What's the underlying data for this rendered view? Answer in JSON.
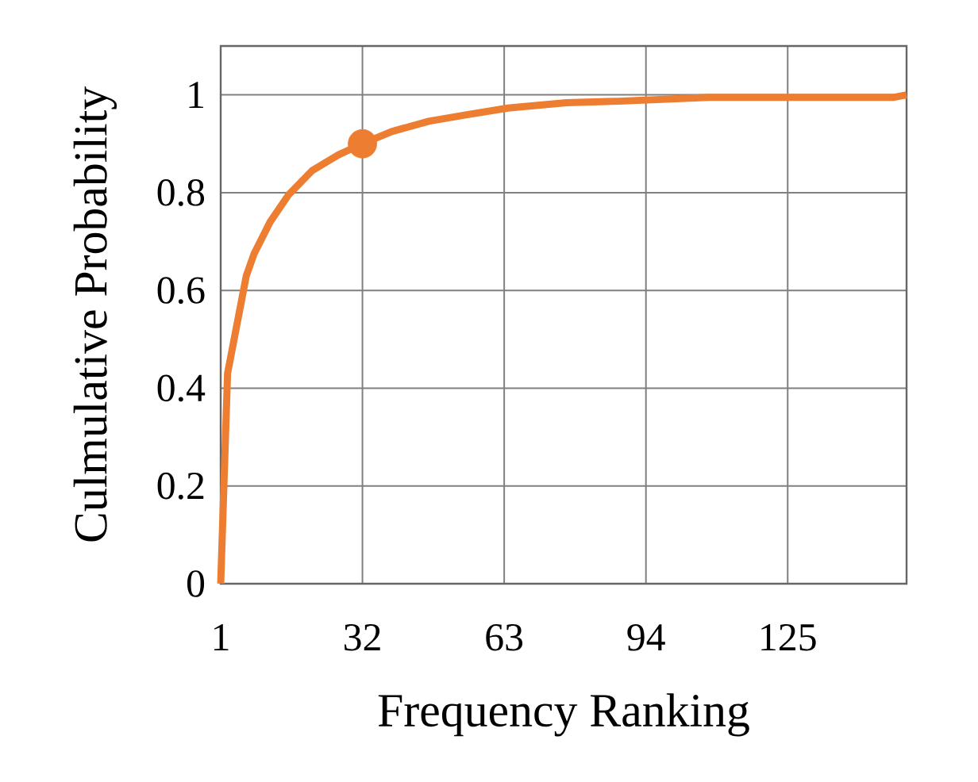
{
  "chart_data": {
    "type": "line",
    "xlabel": "Frequency Ranking",
    "ylabel": "Culmulative Probability",
    "xlim": [
      1,
      151
    ],
    "ylim": [
      0,
      1.1
    ],
    "xticks": [
      1,
      32,
      63,
      94,
      125
    ],
    "yticks": [
      0,
      0.2,
      0.4,
      0.6,
      0.8,
      1
    ],
    "grid": true,
    "series": [
      {
        "color": "#ed7d31",
        "marker": "none",
        "x": [
          1,
          2.5,
          6.6,
          8.3,
          11.8,
          15.8,
          21,
          26.7,
          32,
          38.4,
          46.5,
          54.6,
          63.8,
          68.5,
          76.6,
          88,
          107.8,
          148.3,
          151
        ],
        "values": [
          0,
          0.43,
          0.63,
          0.675,
          0.74,
          0.795,
          0.845,
          0.877,
          0.9,
          0.925,
          0.946,
          0.959,
          0.973,
          0.977,
          0.984,
          0.987,
          0.995,
          0.995,
          1.0
        ]
      },
      {
        "type": "scatter",
        "color": "#ed7d31",
        "marker": "circle",
        "x": [
          32
        ],
        "values": [
          0.9
        ]
      }
    ]
  }
}
